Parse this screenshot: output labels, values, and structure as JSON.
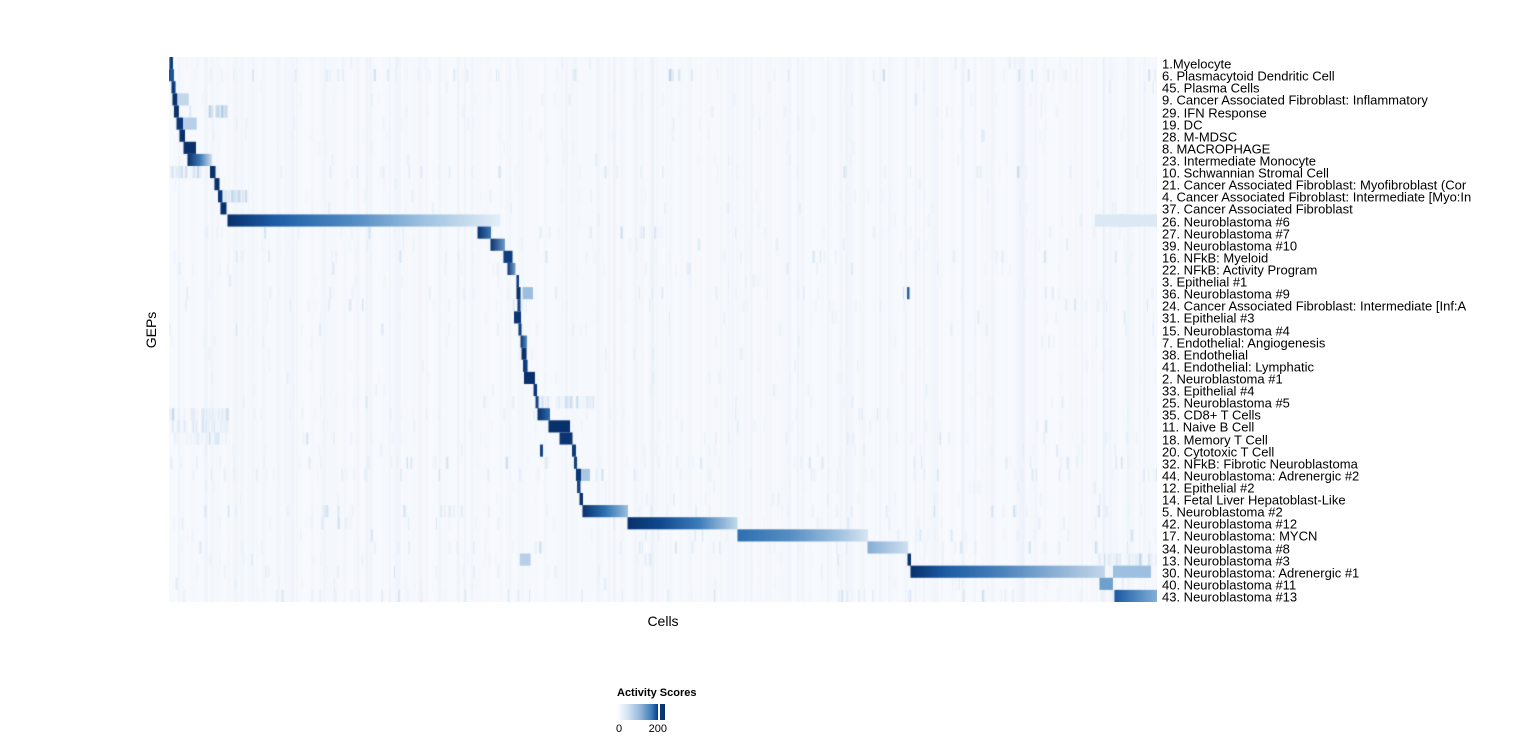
{
  "chart_data": {
    "type": "heatmap",
    "title": "",
    "xlabel": "Cells",
    "ylabel": "GEPs",
    "legend": {
      "title": "Activity Scores",
      "tick_labels": [
        "0",
        "200"
      ],
      "tick_values": [
        0,
        200
      ],
      "tick_positions": [
        0,
        0.85
      ],
      "low_color": "#ffffff",
      "high_color": "#08306b"
    },
    "colors": {
      "background": "#f6f9fd",
      "stripe_palette": [
        "#d7e5f3",
        "#bcd3ea",
        "#9abfe0",
        "#7fa9d2"
      ],
      "dark": "#08306b"
    },
    "n_rows": 45,
    "rows": [
      {
        "label": "1.Myelocyte",
        "noise": 0.1,
        "blocks": [
          {
            "s": 0.0005,
            "e": 0.004,
            "c": "#0b3a7c"
          }
        ]
      },
      {
        "label": "6. Plasmacytoid Dendritic Cell",
        "noise": 0.3,
        "blocks": [
          {
            "s": 0.0,
            "e": 0.005,
            "c": "#1c5294"
          }
        ]
      },
      {
        "label": "45. Plasma Cells",
        "noise": 0.07,
        "blocks": [
          {
            "s": 0.0025,
            "e": 0.0066,
            "c": "#0b3a7c"
          }
        ]
      },
      {
        "label": "9. Cancer Associated Fibroblast: Inflammatory",
        "noise": 0.12,
        "blocks": [
          {
            "s": 0.0035,
            "e": 0.0086,
            "c": "#08306b"
          },
          {
            "s": 0.0086,
            "e": 0.02,
            "c": "#c3d7ec"
          }
        ]
      },
      {
        "label": "29. IFN Response",
        "noise": 0.08,
        "burst": [
          0.0395,
          0.058,
          0.55
        ],
        "blocks": [
          {
            "s": 0.005,
            "e": 0.01,
            "c": "#08306b"
          }
        ]
      },
      {
        "label": "19. DC",
        "noise": 0.1,
        "blocks": [
          {
            "s": 0.0076,
            "e": 0.0142,
            "c": "#0a3576"
          },
          {
            "s": 0.0142,
            "e": 0.028,
            "c": "#b7cfe8"
          }
        ]
      },
      {
        "label": "28. M-MDSC",
        "noise": 0.12,
        "blocks": [
          {
            "s": 0.0106,
            "e": 0.0162,
            "c": "#08306b"
          }
        ]
      },
      {
        "label": "8. MACROPHAGE",
        "noise": 0.08,
        "blocks": [
          {
            "s": 0.0147,
            "e": 0.0273,
            "c": "#08306b"
          }
        ]
      },
      {
        "label": "23. Intermediate Monocyte",
        "noise": 0.08,
        "blocks": [
          {
            "s": 0.0187,
            "e": 0.0435,
            "grad": [
              [
                0,
                "#08306b"
              ],
              [
                0.5,
                "#3c77b2"
              ],
              [
                1,
                "#cfe0f0"
              ]
            ]
          }
        ]
      },
      {
        "label": "10. Schwannian Stromal Cell",
        "noise": 0.2,
        "burst": [
          0,
          0.032,
          0.5
        ],
        "blocks": [
          {
            "s": 0.0415,
            "e": 0.0471,
            "c": "#08306b"
          }
        ]
      },
      {
        "label": "21. Cancer Associated Fibroblast: Myofibroblast (Cor",
        "noise": 0.07,
        "blocks": [
          {
            "s": 0.046,
            "e": 0.0511,
            "c": "#08306b"
          }
        ]
      },
      {
        "label": "4. Cancer Associated Fibroblast: Intermediate [Myo:In",
        "noise": 0.1,
        "burst": [
          0.054,
          0.078,
          0.5
        ],
        "blocks": [
          {
            "s": 0.0496,
            "e": 0.0541,
            "c": "#0a3576"
          }
        ]
      },
      {
        "label": "37. Cancer Associated Fibroblast",
        "noise": 0.08,
        "blocks": [
          {
            "s": 0.0521,
            "e": 0.0582,
            "c": "#08306b"
          }
        ]
      },
      {
        "label": "26. Neuroblastoma #6",
        "noise": 0.1,
        "burst": [
          0.937,
          1,
          0.5
        ],
        "blocks": [
          {
            "s": 0.0592,
            "e": 0.335,
            "grad": [
              [
                0,
                "#08306b"
              ],
              [
                0.18,
                "#1d5fa8"
              ],
              [
                0.45,
                "#4f8ac1"
              ],
              [
                0.72,
                "#9ec2e1"
              ],
              [
                1,
                "#e4eef8"
              ]
            ]
          },
          {
            "s": 0.937,
            "e": 1.0,
            "c": "#dce9f4"
          }
        ]
      },
      {
        "label": "27. Neuroblastoma #7",
        "noise": 0.2,
        "blocks": [
          {
            "s": 0.3123,
            "e": 0.3259,
            "grad": [
              [
                0,
                "#08306b"
              ],
              [
                1,
                "#3c77b2"
              ]
            ]
          }
        ]
      },
      {
        "label": "39. Neuroblastoma #10",
        "noise": 0.12,
        "blocks": [
          {
            "s": 0.3254,
            "e": 0.34,
            "grad": [
              [
                0,
                "#08306b"
              ],
              [
                1,
                "#6b9bca"
              ]
            ]
          }
        ]
      },
      {
        "label": "16. NFkB: Myeloid",
        "noise": 0.2,
        "blocks": [
          {
            "s": 0.3385,
            "e": 0.3477,
            "c": "#0d3d80"
          }
        ]
      },
      {
        "label": "22. NFkB: Activity Program",
        "noise": 0.15,
        "blocks": [
          {
            "s": 0.3426,
            "e": 0.3507,
            "grad": [
              [
                0,
                "#0a3576"
              ],
              [
                1,
                "#7ca3cf"
              ]
            ]
          }
        ]
      },
      {
        "label": "3. Epithelial #1",
        "noise": 0.07,
        "blocks": [
          {
            "s": 0.3517,
            "e": 0.3542,
            "c": "#0a3576"
          }
        ]
      },
      {
        "label": "36. Neuroblastoma #9",
        "noise": 0.17,
        "blocks": [
          {
            "s": 0.3517,
            "e": 0.3558,
            "c": "#08306b"
          },
          {
            "s": 0.3578,
            "e": 0.3684,
            "c": "#9dbfdf"
          },
          {
            "s": 0.747,
            "e": 0.7495,
            "c": "#2a5d9f"
          }
        ]
      },
      {
        "label": "24. Cancer Associated Fibroblast: Intermediate [Inf:A",
        "noise": 0.17,
        "blocks": [
          {
            "s": 0.3527,
            "e": 0.3558,
            "c": "#123f80"
          }
        ]
      },
      {
        "label": "31. Epithelial #3",
        "noise": 0.1,
        "blocks": [
          {
            "s": 0.3492,
            "e": 0.3563,
            "c": "#0a3576"
          }
        ]
      },
      {
        "label": "15. Neuroblastoma #4",
        "noise": 0.12,
        "blocks": [
          {
            "s": 0.3537,
            "e": 0.3568,
            "c": "#0d3d80"
          }
        ]
      },
      {
        "label": "7. Endothelial: Angiogenesis",
        "noise": 0.08,
        "blocks": [
          {
            "s": 0.3558,
            "e": 0.3624,
            "grad": [
              [
                0,
                "#08306b"
              ],
              [
                1,
                "#5d92c6"
              ]
            ]
          }
        ]
      },
      {
        "label": "38. Endothelial",
        "noise": 0.08,
        "blocks": [
          {
            "s": 0.3568,
            "e": 0.3619,
            "c": "#08306b"
          }
        ]
      },
      {
        "label": "41. Endothelial: Lymphatic",
        "noise": 0.06,
        "blocks": [
          {
            "s": 0.3583,
            "e": 0.3629,
            "c": "#0d3d80"
          }
        ]
      },
      {
        "label": "2. Neuroblastoma #1",
        "noise": 0.1,
        "blocks": [
          {
            "s": 0.3593,
            "e": 0.3704,
            "c": "#08306b"
          }
        ]
      },
      {
        "label": "33. Epithelial #4",
        "noise": 0.08,
        "blocks": [
          {
            "s": 0.369,
            "e": 0.3725,
            "c": "#0a3576"
          }
        ]
      },
      {
        "label": "25. Neuroblastoma #5",
        "noise": 0.12,
        "burst": [
          0.374,
          0.43,
          0.4
        ],
        "blocks": [
          {
            "s": 0.371,
            "e": 0.374,
            "c": "#123f80"
          }
        ]
      },
      {
        "label": "35. CD8+ T Cells",
        "noise": 0.15,
        "burst": [
          0,
          0.06,
          0.4
        ],
        "blocks": [
          {
            "s": 0.373,
            "e": 0.3856,
            "grad": [
              [
                0,
                "#08306b"
              ],
              [
                1,
                "#2d6cae"
              ]
            ]
          }
        ]
      },
      {
        "label": "11. Naive B Cell",
        "noise": 0.12,
        "burst": [
          0,
          0.06,
          0.35
        ],
        "blocks": [
          {
            "s": 0.3841,
            "e": 0.4059,
            "c": "#08306b"
          }
        ]
      },
      {
        "label": "18. Memory T Cell",
        "noise": 0.15,
        "burst": [
          0,
          0.06,
          0.3
        ],
        "blocks": [
          {
            "s": 0.3953,
            "e": 0.4084,
            "c": "#0a3475"
          }
        ]
      },
      {
        "label": "20. Cytotoxic T Cell",
        "noise": 0.12,
        "blocks": [
          {
            "s": 0.3755,
            "e": 0.3785,
            "c": "#16447f"
          },
          {
            "s": 0.4079,
            "e": 0.4119,
            "c": "#0c3878"
          }
        ]
      },
      {
        "label": "32. NFkB: Fibrotic Neuroblastoma",
        "noise": 0.28,
        "blocks": [
          {
            "s": 0.4099,
            "e": 0.413,
            "c": "#123f80"
          }
        ]
      },
      {
        "label": "44. Neuroblastoma: Adrenergic #2",
        "noise": 0.25,
        "blocks": [
          {
            "s": 0.4119,
            "e": 0.417,
            "c": "#0a3576"
          },
          {
            "s": 0.417,
            "e": 0.426,
            "c": "#a9c7e3"
          }
        ]
      },
      {
        "label": "12. Epithelial #2",
        "noise": 0.08,
        "blocks": [
          {
            "s": 0.413,
            "e": 0.4165,
            "c": "#16447f"
          }
        ]
      },
      {
        "label": "14. Fetal Liver Hepatoblast-Like",
        "noise": 0.1,
        "blocks": [
          {
            "s": 0.4155,
            "e": 0.419,
            "c": "#08306b"
          }
        ]
      },
      {
        "label": "5. Neuroblastoma #2",
        "noise": 0.25,
        "blocks": [
          {
            "s": 0.4185,
            "e": 0.4645,
            "grad": [
              [
                0,
                "#08306b"
              ],
              [
                0.5,
                "#2d72b2"
              ],
              [
                1,
                "#9abfdf"
              ]
            ]
          }
        ]
      },
      {
        "label": "42. Neuroblastoma #12",
        "noise": 0.17,
        "blocks": [
          {
            "s": 0.4641,
            "e": 0.5754,
            "grad": [
              [
                0,
                "#08306b"
              ],
              [
                0.3,
                "#11498f"
              ],
              [
                0.65,
                "#3c7cba"
              ],
              [
                1,
                "#c2d8ec"
              ]
            ]
          }
        ]
      },
      {
        "label": "17. Neuroblastoma: MYCN",
        "noise": 0.15,
        "blocks": [
          {
            "s": 0.5754,
            "e": 0.7075,
            "grad": [
              [
                0,
                "#2d6fb0"
              ],
              [
                0.4,
                "#568dc3"
              ],
              [
                0.8,
                "#a5c5e2"
              ],
              [
                1,
                "#d8e6f3"
              ]
            ]
          }
        ]
      },
      {
        "label": "34. Neuroblastoma #8",
        "noise": 0.27,
        "blocks": [
          {
            "s": 0.707,
            "e": 0.748,
            "grad": [
              [
                0,
                "#85add5"
              ],
              [
                1,
                "#cfe0f0"
              ]
            ]
          }
        ]
      },
      {
        "label": "13. Neuroblastoma #3",
        "noise": 0.1,
        "burst": [
          0.94,
          1,
          0.4
        ],
        "blocks": [
          {
            "s": 0.355,
            "e": 0.366,
            "c": "#b9d0e8"
          },
          {
            "s": 0.7475,
            "e": 0.751,
            "c": "#08306b"
          }
        ]
      },
      {
        "label": "30. Neuroblastoma: Adrenergic #1",
        "noise": 0.12,
        "burst": [
          0.9554,
          0.9939,
          0.45
        ],
        "blocks": [
          {
            "s": 0.7505,
            "e": 0.9474,
            "grad": [
              [
                0,
                "#08306b"
              ],
              [
                0.18,
                "#1c5ca4"
              ],
              [
                0.45,
                "#477fba"
              ],
              [
                0.75,
                "#8db1d6"
              ],
              [
                1,
                "#c3d7eb"
              ]
            ]
          },
          {
            "s": 0.9554,
            "e": 0.9939,
            "c": "#9dc0e0"
          }
        ]
      },
      {
        "label": "40. Neuroblastoma #11",
        "noise": 0.15,
        "blocks": [
          {
            "s": 0.9418,
            "e": 0.9554,
            "c": "#6f9fcd"
          }
        ]
      },
      {
        "label": "43. Neuroblastoma #13",
        "noise": 0.25,
        "blocks": [
          {
            "s": 0.9569,
            "e": 1.0,
            "grad": [
              [
                0,
                "#1a57a0"
              ],
              [
                0.5,
                "#4d86c0"
              ],
              [
                1,
                "#86afd6"
              ]
            ]
          }
        ]
      }
    ]
  }
}
